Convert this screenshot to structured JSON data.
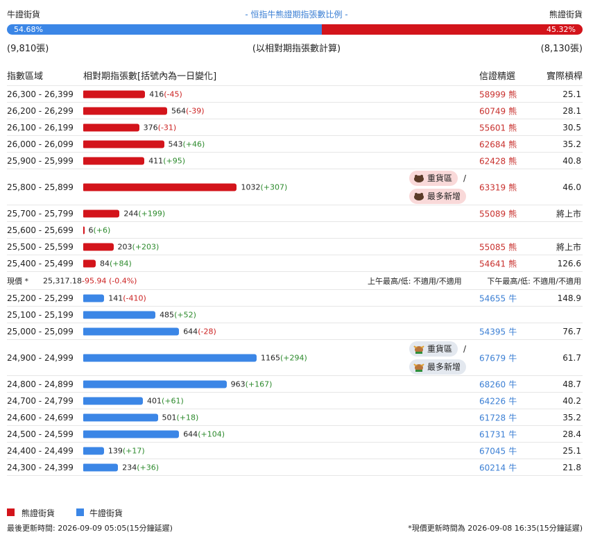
{
  "header": {
    "left": "牛證街貨",
    "title": "- 恒指牛熊證期指張數比例 -",
    "right": "熊證街貨",
    "bull_pct": {
      "value": 54.68,
      "label": "54.68%"
    },
    "bear_pct": {
      "value": 45.32,
      "label": "45.32%"
    },
    "bull_count": "(9,810張)",
    "note": "(以相對期指張數計算)",
    "bear_count": "(8,130張)"
  },
  "columns": [
    "指數區域",
    "相對期指張數[括號內為一日變化]",
    "信證精選",
    "實際槓桿"
  ],
  "bear_rows": [
    {
      "range": "26,300 - 26,399",
      "count": 416,
      "change": "(-45)",
      "code": "58999",
      "kind": "熊",
      "leverage": "25.1"
    },
    {
      "range": "26,200 - 26,299",
      "count": 564,
      "change": "(-39)",
      "code": "60749",
      "kind": "熊",
      "leverage": "28.1"
    },
    {
      "range": "26,100 - 26,199",
      "count": 376,
      "change": "(-31)",
      "code": "55601",
      "kind": "熊",
      "leverage": "30.5"
    },
    {
      "range": "26,000 - 26,099",
      "count": 543,
      "change": "(+46)",
      "code": "62684",
      "kind": "熊",
      "leverage": "35.2"
    },
    {
      "range": "25,900 - 25,999",
      "count": 411,
      "change": "(+95)",
      "code": "62428",
      "kind": "熊",
      "leverage": "40.8"
    },
    {
      "range": "25,800 - 25,899",
      "count": 1032,
      "change": "(+307)",
      "tags": [
        "重貨區",
        "最多新增"
      ],
      "tag_sep": "/",
      "code": "63319",
      "kind": "熊",
      "leverage": "46.0"
    },
    {
      "range": "25,700 - 25,799",
      "count": 244,
      "change": "(+199)",
      "code": "55089",
      "kind": "熊",
      "leverage": "將上市"
    },
    {
      "range": "25,600 - 25,699",
      "count": 6,
      "change": "(+6)"
    },
    {
      "range": "25,500 - 25,599",
      "count": 203,
      "change": "(+203)",
      "code": "55085",
      "kind": "熊",
      "leverage": "將上市"
    },
    {
      "range": "25,400 - 25,499",
      "count": 84,
      "change": "(+84)",
      "code": "54641",
      "kind": "熊",
      "leverage": "126.6"
    }
  ],
  "price_row": {
    "label": "現價 *",
    "price": "25,317.18",
    "change": "-95.94 (-0.4%)",
    "am": "上午最高/低: 不適用/不適用",
    "pm": "下午最高/低: 不適用/不適用"
  },
  "bull_rows": [
    {
      "range": "25,200 - 25,299",
      "count": 141,
      "change": "(-410)",
      "code": "54655",
      "kind": "牛",
      "leverage": "148.9"
    },
    {
      "range": "25,100 - 25,199",
      "count": 485,
      "change": "(+52)"
    },
    {
      "range": "25,000 - 25,099",
      "count": 644,
      "change": "(-28)",
      "code": "54395",
      "kind": "牛",
      "leverage": "76.7"
    },
    {
      "range": "24,900 - 24,999",
      "count": 1165,
      "change": "(+294)",
      "tags": [
        "重貨區",
        "最多新增"
      ],
      "tag_sep": "/",
      "code": "67679",
      "kind": "牛",
      "leverage": "61.7"
    },
    {
      "range": "24,800 - 24,899",
      "count": 963,
      "change": "(+167)",
      "code": "68260",
      "kind": "牛",
      "leverage": "48.7"
    },
    {
      "range": "24,700 - 24,799",
      "count": 401,
      "change": "(+61)",
      "code": "64226",
      "kind": "牛",
      "leverage": "40.2"
    },
    {
      "range": "24,600 - 24,699",
      "count": 501,
      "change": "(+18)",
      "code": "61728",
      "kind": "牛",
      "leverage": "35.2"
    },
    {
      "range": "24,500 - 24,599",
      "count": 644,
      "change": "(+104)",
      "code": "61731",
      "kind": "牛",
      "leverage": "28.4"
    },
    {
      "range": "24,400 - 24,499",
      "count": 139,
      "change": "(+17)",
      "code": "67045",
      "kind": "牛",
      "leverage": "25.1"
    },
    {
      "range": "24,300 - 24,399",
      "count": 234,
      "change": "(+36)",
      "code": "60214",
      "kind": "牛",
      "leverage": "21.8"
    }
  ],
  "legend": {
    "bear": "熊證街貨",
    "bull": "牛證街貨"
  },
  "footer": {
    "left": "最後更新時間: 2026-09-09 05:05(15分鐘延遲)",
    "right": "*現價更新時間為 2026-09-08 16:35(15分鐘延遲)"
  }
}
